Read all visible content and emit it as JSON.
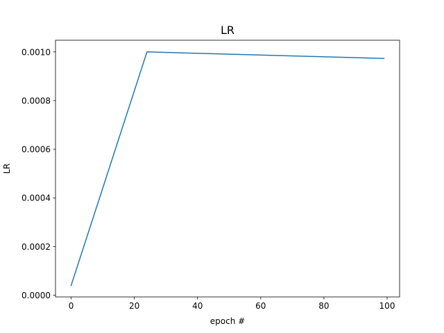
{
  "chart_data": {
    "type": "line",
    "title": "LR",
    "xlabel": "epoch #",
    "ylabel": "LR",
    "xlim": [
      -4.95,
      103.95
    ],
    "ylim": [
      -7.1e-06,
      0.0010479
    ],
    "x_ticks": [
      0,
      20,
      40,
      60,
      80,
      100
    ],
    "x_tick_labels": [
      "0",
      "20",
      "40",
      "60",
      "80",
      "100"
    ],
    "y_ticks": [
      0.0,
      0.0002,
      0.0004,
      0.0006,
      0.0008,
      0.001
    ],
    "y_tick_labels": [
      "0.0000",
      "0.0002",
      "0.0004",
      "0.0006",
      "0.0008",
      "0.0010"
    ],
    "grid": false,
    "legend": "none",
    "series": [
      {
        "color": "#1f77b4",
        "x": [
          0,
          24,
          99
        ],
        "y": [
          4e-05,
          0.001,
          0.000973
        ]
      }
    ]
  }
}
